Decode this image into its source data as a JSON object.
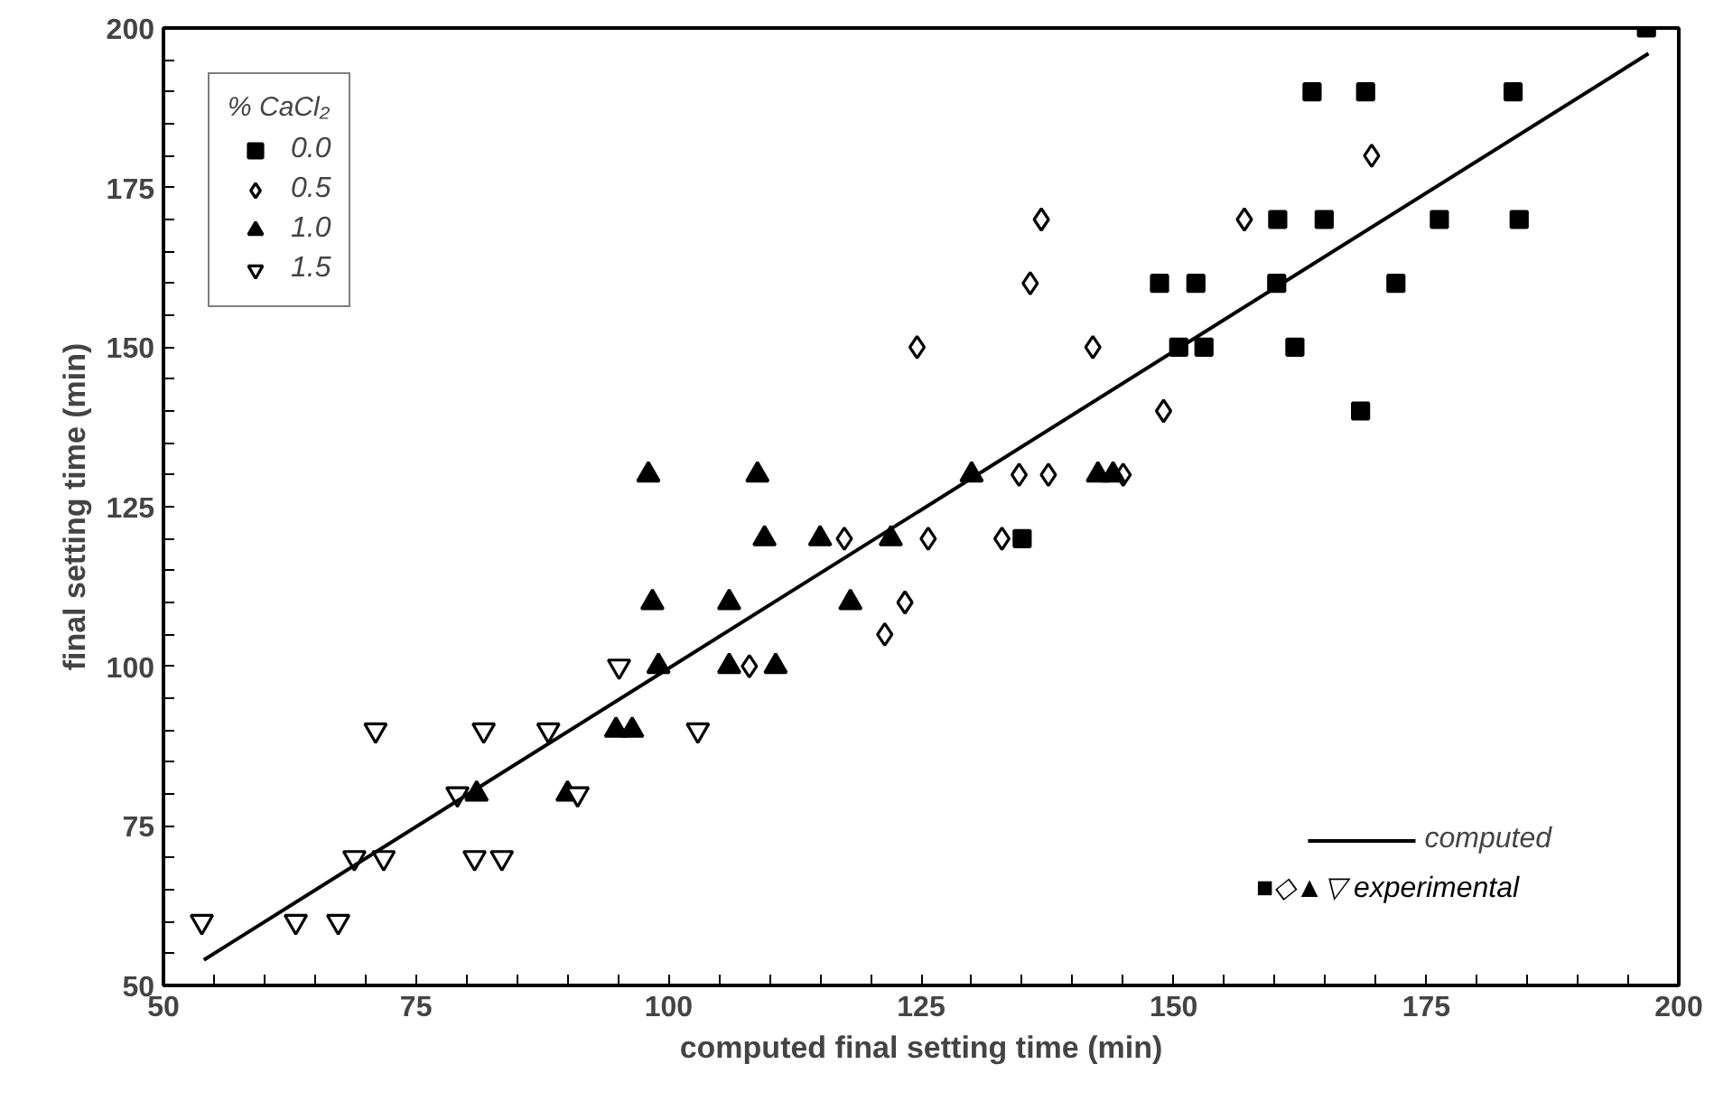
{
  "chart_data": {
    "type": "scatter",
    "xlabel": "computed final setting time (min)",
    "ylabel": "final setting time (min)",
    "legend_title": "% CaCl₂",
    "legend": "top left",
    "grid": false,
    "xlim": [
      50,
      200
    ],
    "ylim": [
      50,
      200
    ],
    "xticks": [
      50,
      {
        "value": 55,
        "label": null
      },
      {
        "value": 60,
        "label": null
      },
      {
        "value": 65,
        "label": null
      },
      {
        "value": 70,
        "label": null
      },
      75,
      {
        "value": 80,
        "label": null
      },
      {
        "value": 85,
        "label": null
      },
      {
        "value": 90,
        "label": null
      },
      {
        "value": 95,
        "label": null
      },
      100,
      {
        "value": 105,
        "label": null
      },
      {
        "value": 110,
        "label": null
      },
      {
        "value": 115,
        "label": null
      },
      {
        "value": 120,
        "label": null
      },
      125,
      {
        "value": 130,
        "label": null
      },
      {
        "value": 135,
        "label": null
      },
      {
        "value": 140,
        "label": null
      },
      {
        "value": 145,
        "label": null
      },
      150,
      {
        "value": 155,
        "label": null
      },
      {
        "value": 160,
        "label": null
      },
      {
        "value": 165,
        "label": null
      },
      {
        "value": 170,
        "label": null
      },
      175,
      {
        "value": 180,
        "label": null
      },
      {
        "value": 185,
        "label": null
      },
      {
        "value": 190,
        "label": null
      },
      {
        "value": 195,
        "label": null
      },
      200
    ],
    "yticks": [
      50,
      {
        "value": 55,
        "label": null
      },
      {
        "value": 60,
        "label": null
      },
      {
        "value": 65,
        "label": null
      },
      {
        "value": 70,
        "label": null
      },
      75,
      {
        "value": 80,
        "label": null
      },
      {
        "value": 85,
        "label": null
      },
      {
        "value": 90,
        "label": null
      },
      {
        "value": 95,
        "label": null
      },
      100,
      {
        "value": 105,
        "label": null
      },
      {
        "value": 110,
        "label": null
      },
      {
        "value": 115,
        "label": null
      },
      {
        "value": 120,
        "label": null
      },
      125,
      {
        "value": 130,
        "label": null
      },
      {
        "value": 135,
        "label": null
      },
      {
        "value": 140,
        "label": null
      },
      {
        "value": 145,
        "label": null
      },
      150,
      {
        "value": 155,
        "label": null
      },
      {
        "value": 160,
        "label": null
      },
      {
        "value": 165,
        "label": null
      },
      {
        "value": 170,
        "label": null
      },
      175,
      {
        "value": 180,
        "label": null
      },
      {
        "value": 185,
        "label": null
      },
      {
        "value": 190,
        "label": null
      },
      {
        "value": 195,
        "label": null
      },
      200
    ],
    "annotations": [
      "■◇▲▽  experimental"
    ],
    "series": [
      {
        "name": "0.0",
        "marker": "square",
        "color": "#000000",
        "x": [
          196.8,
          163.7,
          169,
          183.6,
          160.3,
          164.9,
          176.3,
          184.2,
          148.6,
          152.2,
          160.2,
          172,
          150.5,
          153,
          162,
          168.5,
          135
        ],
        "values": [
          200,
          190,
          190,
          190,
          170,
          170,
          170,
          170,
          160,
          160,
          160,
          160,
          150,
          150,
          150,
          140,
          120
        ]
      },
      {
        "name": "0.5",
        "marker": "diamond",
        "color": "#000000",
        "x": [
          117.4,
          125.7,
          108,
          123.4,
          121.4,
          134.7,
          137.6,
          133,
          136.9,
          135.8,
          142,
          149,
          145,
          157,
          169.6,
          124.6
        ],
        "values": [
          120,
          120,
          100,
          110,
          105,
          130,
          130,
          120,
          170,
          160,
          150,
          140,
          130,
          170,
          180,
          150
        ]
      },
      {
        "name": "1.0",
        "marker": "triangle",
        "color": "#000000",
        "x": [
          81,
          90,
          98,
          108.8,
          98.4,
          106,
          109.5,
          115,
          122,
          118,
          99,
          106,
          110.6,
          94.8,
          96.4,
          130,
          142.5,
          144
        ],
        "values": [
          80,
          80,
          130,
          130,
          110,
          110,
          120,
          120,
          120,
          110,
          100,
          100,
          100,
          90,
          90,
          130,
          130,
          130
        ]
      },
      {
        "name": "1.5",
        "color": "#000000",
        "x": [
          53.8,
          63.1,
          67.3,
          68.9,
          71.8,
          71,
          79.1,
          80.8,
          83.5,
          81.7,
          88.1,
          91,
          95.1,
          102.9
        ],
        "values": [
          60,
          60,
          60,
          70,
          70,
          90,
          80,
          70,
          70,
          90,
          90,
          80,
          100,
          90
        ]
      },
      {
        "name": "computed",
        "type": "line",
        "line_style": "solid",
        "color": "#000000",
        "x": [
          54,
          197
        ],
        "values": [
          54,
          196
        ]
      }
    ]
  }
}
